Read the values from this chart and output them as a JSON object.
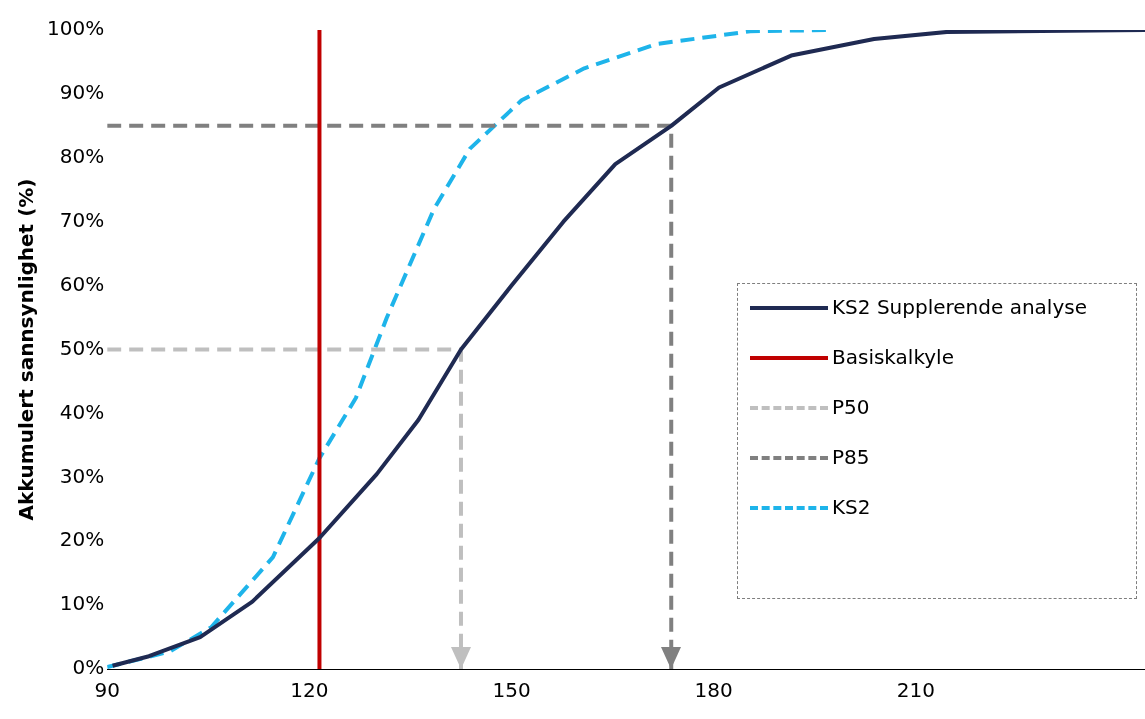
{
  "chart_data": {
    "type": "line",
    "ylabel": "Akkumulert sannsynlighet (%)",
    "xlim": [
      90,
      244
    ],
    "xticks": [
      90,
      120,
      150,
      180,
      210
    ],
    "ylim": [
      0,
      100
    ],
    "yticks": [
      {
        "value": 0,
        "label": "0%"
      },
      {
        "value": 10,
        "label": "10%"
      },
      {
        "value": 20,
        "label": "20%"
      },
      {
        "value": 30,
        "label": "30%"
      },
      {
        "value": 40,
        "label": "40%"
      },
      {
        "value": 50,
        "label": "50%"
      },
      {
        "value": 60,
        "label": "60%"
      },
      {
        "value": 70,
        "label": "70%"
      },
      {
        "value": 80,
        "label": "80%"
      },
      {
        "value": 90,
        "label": "90%"
      },
      {
        "value": 100,
        "label": "100%"
      }
    ],
    "grid": false,
    "legend": "right",
    "marker": "none",
    "series": [
      {
        "name": "KS2 Supplerende analyse",
        "color": "#1f2a52",
        "line_style": "solid",
        "x": [
          90.8,
          96.2,
          103.8,
          111.5,
          121.5,
          130,
          136.2,
          142.5,
          150,
          157.7,
          165.4,
          173.7,
          180.8,
          191.5,
          203.8,
          214.6,
          244
        ],
        "values": [
          0.5,
          2,
          5,
          10.5,
          20.5,
          30.5,
          39,
          50,
          60,
          70,
          79,
          85,
          91,
          96,
          98.6,
          99.7,
          100
        ]
      },
      {
        "name": "Basiskalkyle",
        "color": "#c00000",
        "line_style": "solid",
        "x": [
          121.5,
          121.5
        ],
        "values": [
          0,
          100
        ]
      },
      {
        "name": "P50",
        "color": "#bfbfbf",
        "line_style": "dashed",
        "x": [
          90,
          142.5,
          142.5
        ],
        "values": [
          50,
          50,
          0
        ]
      },
      {
        "name": "P85",
        "color": "#808080",
        "line_style": "dashed",
        "x": [
          90,
          173.7,
          173.7
        ],
        "values": [
          85,
          85,
          0
        ]
      },
      {
        "name": "KS2",
        "color": "#1eb4ea",
        "line_style": "dashed",
        "x": [
          90,
          99.2,
          105.4,
          114.6,
          121.5,
          126.9,
          131.5,
          138.5,
          143.8,
          151.5,
          160.8,
          171.5,
          185.4,
          196.9
        ],
        "values": [
          0.3,
          2.7,
          6.5,
          17.5,
          33,
          42.4,
          55,
          72,
          81.4,
          89,
          94,
          97.8,
          99.8,
          100
        ]
      }
    ]
  }
}
